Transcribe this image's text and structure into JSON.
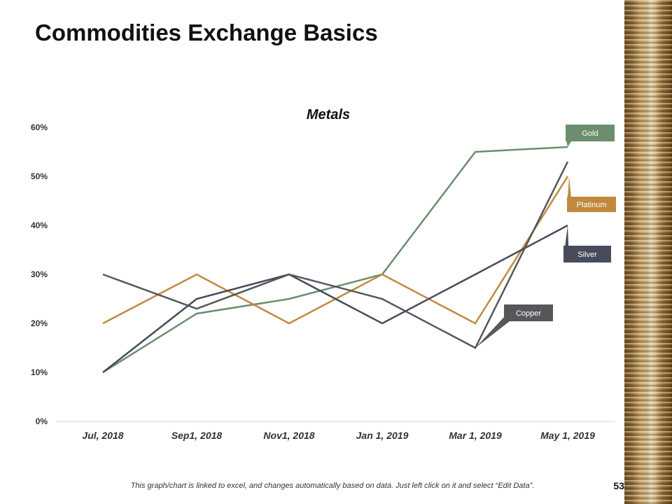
{
  "slide": {
    "title": "Commodities Exchange Basics",
    "page_number": "53",
    "footnote": "This graph/chart is linked to excel, and changes automatically based on data. Just left click on it and select “Edit Data”."
  },
  "chart_data": {
    "type": "line",
    "title": "Metals",
    "xlabel": "",
    "ylabel": "",
    "categories": [
      "Jul, 2018",
      "Sep1, 2018",
      "Nov1, 2018",
      "Jan 1, 2019",
      "Mar 1, 2019",
      "May 1, 2019"
    ],
    "ylim": [
      0,
      0.6
    ],
    "yticks": [
      "0%",
      "10%",
      "20%",
      "30%",
      "40%",
      "50%",
      "60%"
    ],
    "grid": false,
    "series": [
      {
        "name": "Gold",
        "color": "#6b8e6e",
        "values": [
          0.1,
          0.22,
          0.25,
          0.3,
          0.55,
          0.56
        ]
      },
      {
        "name": "Platinum",
        "color": "#c08a3e",
        "values": [
          0.2,
          0.3,
          0.2,
          0.3,
          0.2,
          0.5
        ]
      },
      {
        "name": "Silver",
        "color": "#474b5c",
        "values": [
          0.1,
          0.25,
          0.3,
          0.2,
          0.3,
          0.4
        ]
      },
      {
        "name": "Copper",
        "color": "#55575a",
        "values": [
          0.3,
          0.23,
          0.3,
          0.25,
          0.15,
          0.53
        ]
      }
    ]
  }
}
